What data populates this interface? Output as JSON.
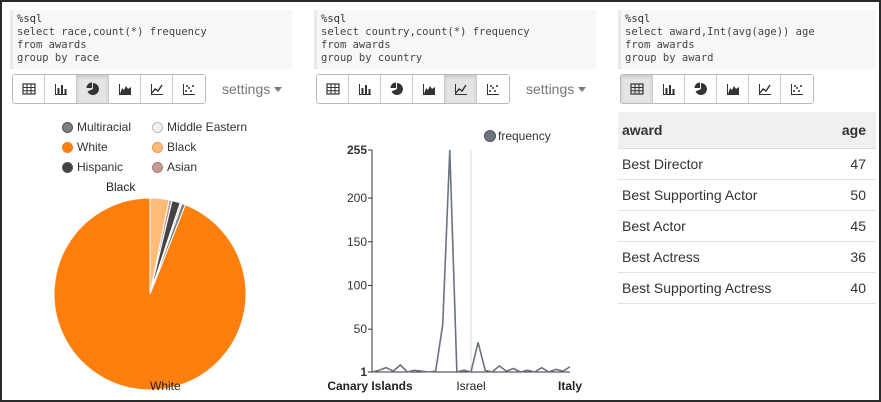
{
  "paragraphs": [
    {
      "code": {
        "magic": "%sql",
        "lines": [
          "select race,count(*) frequency",
          "from awards",
          "group by race"
        ]
      },
      "active_view": "pie",
      "settings_label": "settings",
      "chart_data": {
        "type": "pie",
        "slices": [
          {
            "name": "White",
            "value": 94.0,
            "color": "#ff7f0e"
          },
          {
            "name": "Black",
            "value": 3.2,
            "color": "#ffbb78"
          },
          {
            "name": "Asian",
            "value": 0.5,
            "color": "#c49c94"
          },
          {
            "name": "Hispanic",
            "value": 1.4,
            "color": "#444444"
          },
          {
            "name": "Middle Eastern",
            "value": 0.3,
            "color": "#dddddd"
          },
          {
            "name": "Multiracial",
            "value": 0.6,
            "color": "#7f7f7f"
          }
        ],
        "legend": [
          "Multiracial",
          "Middle Eastern",
          "White",
          "Black",
          "Hispanic",
          "Asian"
        ],
        "legend_placement": "top",
        "slice_labels": [
          "Black",
          "White"
        ]
      }
    },
    {
      "code": {
        "magic": "%sql",
        "lines": [
          "select country,count(*) frequency",
          "from awards",
          "group by country"
        ]
      },
      "active_view": "line",
      "settings_label": "settings",
      "chart_data": {
        "type": "line",
        "series": [
          {
            "name": "frequency",
            "color": "#6b7280",
            "values": [
              1,
              3,
              6,
              2,
              9,
              1,
              3,
              2,
              1,
              2,
              55,
              255,
              1,
              3,
              1,
              35,
              3,
              1,
              8,
              2,
              5,
              1,
              3,
              1,
              6,
              1,
              4,
              2,
              7
            ]
          }
        ],
        "x_tick_labels": [
          {
            "label": "Canary Islands",
            "index": 0,
            "bold": true
          },
          {
            "label": "Israel",
            "index": 14,
            "bold": false
          },
          {
            "label": "Italy",
            "index": 28,
            "bold": true
          }
        ],
        "yticks": [
          1,
          50,
          100,
          150,
          200,
          255
        ],
        "ylim": [
          1,
          255
        ],
        "legend_placement": "top-right",
        "vertical_guide_index": 14
      }
    },
    {
      "code": {
        "magic": "%sql",
        "lines": [
          "select award,Int(avg(age)) age",
          "from awards",
          "group by award"
        ]
      },
      "active_view": "table",
      "settings_label": "",
      "table": {
        "columns": [
          "award",
          "age"
        ],
        "rows": [
          [
            "Best Director",
            "47"
          ],
          [
            "Best Supporting Actor",
            "50"
          ],
          [
            "Best Actor",
            "45"
          ],
          [
            "Best Actress",
            "36"
          ],
          [
            "Best Supporting Actress",
            "40"
          ]
        ]
      }
    }
  ],
  "toolbar_buttons": [
    {
      "name": "table",
      "icon": "table-icon"
    },
    {
      "name": "bar",
      "icon": "bar-chart-icon"
    },
    {
      "name": "pie",
      "icon": "pie-chart-icon"
    },
    {
      "name": "area",
      "icon": "area-chart-icon"
    },
    {
      "name": "line",
      "icon": "line-chart-icon"
    },
    {
      "name": "scatter",
      "icon": "scatter-chart-icon"
    }
  ]
}
